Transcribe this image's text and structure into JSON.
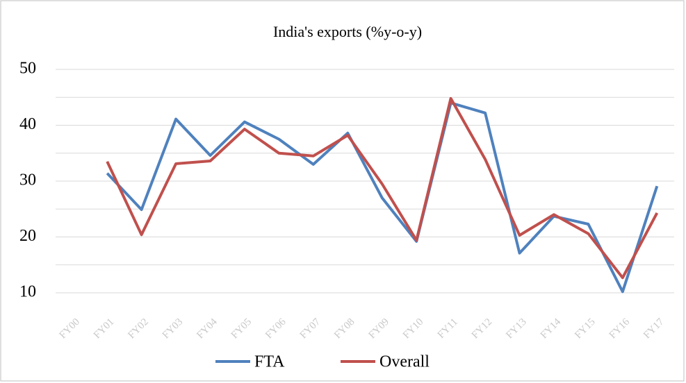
{
  "chart_data": {
    "type": "line",
    "title": "India's exports (%y-o-y)",
    "categories": [
      "FY00",
      "FY01",
      "FY02",
      "FY03",
      "FY04",
      "FY05",
      "FY06",
      "FY07",
      "FY08",
      "FY09",
      "FY10",
      "FY11",
      "FY12",
      "FY13",
      "FY14",
      "FY15",
      "FY16",
      "FY17"
    ],
    "series": [
      {
        "name": "FTA",
        "color": "#4f81bd",
        "values": [
          null,
          31.4,
          24.9,
          41.1,
          34.6,
          40.6,
          37.5,
          33.0,
          38.6,
          27.0,
          19.2,
          44.0,
          42.2,
          17.1,
          23.7,
          22.3,
          10.2,
          29.1
        ]
      },
      {
        "name": "Overall",
        "color": "#c0504d",
        "values": [
          null,
          33.5,
          20.4,
          33.1,
          33.6,
          39.3,
          35.0,
          34.5,
          38.2,
          29.5,
          19.4,
          44.8,
          33.9,
          20.3,
          24.0,
          20.6,
          12.7,
          24.3
        ]
      }
    ],
    "ylim": [
      10,
      50
    ],
    "yticks": [
      10,
      20,
      30,
      40,
      50
    ],
    "minor_yticks": [
      15,
      25,
      35,
      45
    ],
    "grid": true,
    "legend": "bottom"
  }
}
